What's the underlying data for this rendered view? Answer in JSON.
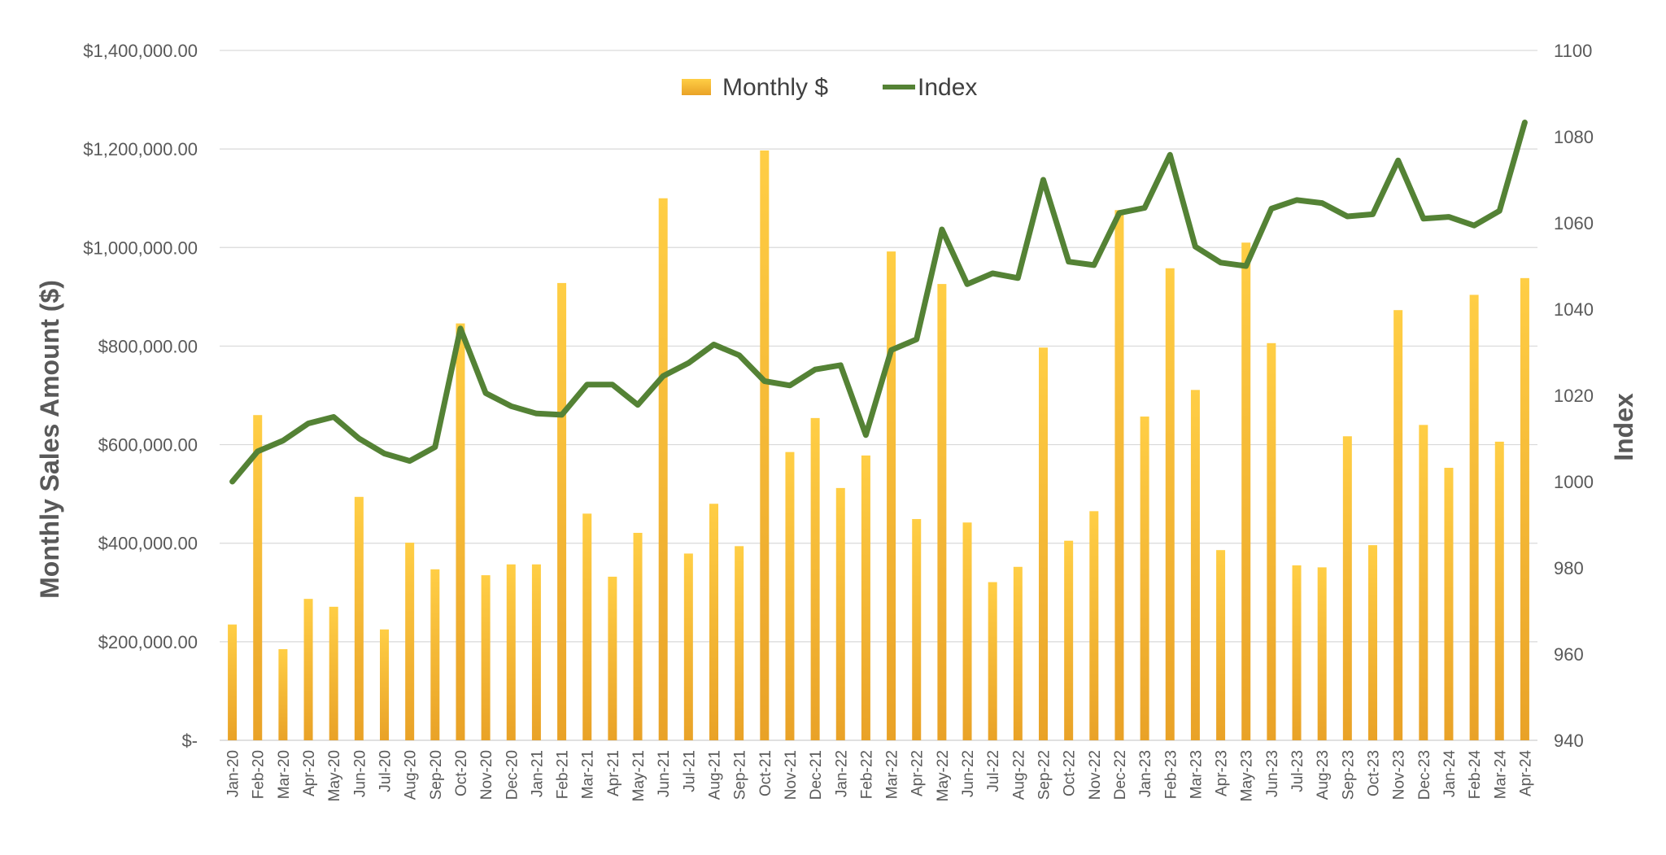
{
  "chart_data": {
    "type": "bar",
    "title": "",
    "xlabel": "",
    "ylabel": "Monthly Sales Amount ($)",
    "ylabel_right": "Index",
    "ylim": [
      0,
      1400000
    ],
    "ylim_right": [
      940,
      1100
    ],
    "yticks_left": [
      0,
      200000,
      400000,
      600000,
      800000,
      1000000,
      1200000,
      1400000
    ],
    "yticks_left_labels": [
      "$-",
      "$200,000.00",
      "$400,000.00",
      "$600,000.00",
      "$800,000.00",
      "$1,000,000.00",
      "$1,200,000.00",
      "$1,400,000.00"
    ],
    "yticks_right": [
      940,
      960,
      980,
      1000,
      1020,
      1040,
      1060,
      1080,
      1100
    ],
    "grid": true,
    "legend_position": "top-center",
    "categories": [
      "Jan-20",
      "Feb-20",
      "Mar-20",
      "Apr-20",
      "May-20",
      "Jun-20",
      "Jul-20",
      "Aug-20",
      "Sep-20",
      "Oct-20",
      "Nov-20",
      "Dec-20",
      "Jan-21",
      "Feb-21",
      "Mar-21",
      "Apr-21",
      "May-21",
      "Jun-21",
      "Jul-21",
      "Aug-21",
      "Sep-21",
      "Oct-21",
      "Nov-21",
      "Dec-21",
      "Jan-22",
      "Feb-22",
      "Mar-22",
      "Apr-22",
      "May-22",
      "Jun-22",
      "Jul-22",
      "Aug-22",
      "Sep-22",
      "Oct-22",
      "Nov-22",
      "Dec-22",
      "Jan-23",
      "Feb-23",
      "Mar-23",
      "Apr-23",
      "May-23",
      "Jun-23",
      "Jul-23",
      "Aug-23",
      "Sep-23",
      "Oct-23",
      "Nov-23",
      "Dec-23",
      "Jan-24",
      "Feb-24",
      "Mar-24",
      "Apr-24"
    ],
    "series": [
      {
        "name": "Monthly $",
        "type": "bar",
        "axis": "left",
        "color": "#F5B52E",
        "values": [
          235000,
          660000,
          185000,
          287000,
          271000,
          494000,
          225000,
          401000,
          347000,
          846000,
          335000,
          357000,
          357000,
          928000,
          460000,
          332000,
          421000,
          1100000,
          379000,
          480000,
          394000,
          1197000,
          585000,
          654000,
          512000,
          578000,
          992000,
          449000,
          926000,
          442000,
          321000,
          352000,
          797000,
          405000,
          465000,
          1076000,
          657000,
          958000,
          711000,
          386000,
          1010000,
          806000,
          355000,
          351000,
          617000,
          396000,
          873000,
          640000,
          553000,
          904000,
          606000,
          938000
        ]
      },
      {
        "name": "Index",
        "type": "line",
        "axis": "right",
        "color": "#548235",
        "values": [
          1000,
          1007,
          1009.5,
          1013.5,
          1015,
          1010,
          1006.5,
          1004.8,
          1008,
          1035.5,
          1020.5,
          1017.5,
          1015.8,
          1015.5,
          1022.5,
          1022.5,
          1017.8,
          1024.5,
          1027.5,
          1031.8,
          1029.3,
          1023.3,
          1022.3,
          1026,
          1027,
          1010.8,
          1030.5,
          1033,
          1058.5,
          1045.8,
          1048.3,
          1047.2,
          1070,
          1051,
          1050.2,
          1062.3,
          1063.5,
          1075.8,
          1054.5,
          1050.8,
          1050,
          1063.3,
          1065.3,
          1064.6,
          1061.5,
          1062,
          1074.5,
          1061,
          1061.4,
          1059.4,
          1062.8,
          1083.3
        ]
      }
    ]
  }
}
